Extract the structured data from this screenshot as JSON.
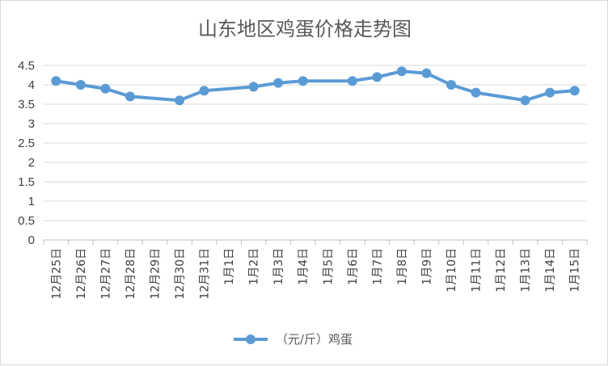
{
  "chart_data": {
    "type": "line",
    "title": "山东地区鸡蛋价格走势图",
    "xlabel": "",
    "ylabel": "",
    "ylim": [
      0,
      4.5
    ],
    "yticks": [
      "0",
      "0.5",
      "1",
      "1.5",
      "2",
      "2.5",
      "3",
      "3.5",
      "4",
      "4.5"
    ],
    "grid": true,
    "legend_position": "bottom",
    "categories": [
      "12月25日",
      "12月26日",
      "12月27日",
      "12月28日",
      "12月29日",
      "12月30日",
      "12月31日",
      "1月1日",
      "1月2日",
      "1月3日",
      "1月4日",
      "1月5日",
      "1月6日",
      "1月7日",
      "1月8日",
      "1月9日",
      "1月10日",
      "1月11日",
      "1月12日",
      "1月13日",
      "1月14日",
      "1月15日"
    ],
    "series": [
      {
        "name": "（元/斤）鸡蛋",
        "color": "#5b9bd5",
        "values": [
          4.1,
          4.0,
          3.9,
          3.7,
          null,
          3.6,
          3.85,
          null,
          3.95,
          4.05,
          4.1,
          null,
          4.1,
          4.2,
          4.35,
          4.3,
          4.0,
          3.8,
          null,
          3.6,
          3.8,
          3.85
        ]
      }
    ]
  }
}
